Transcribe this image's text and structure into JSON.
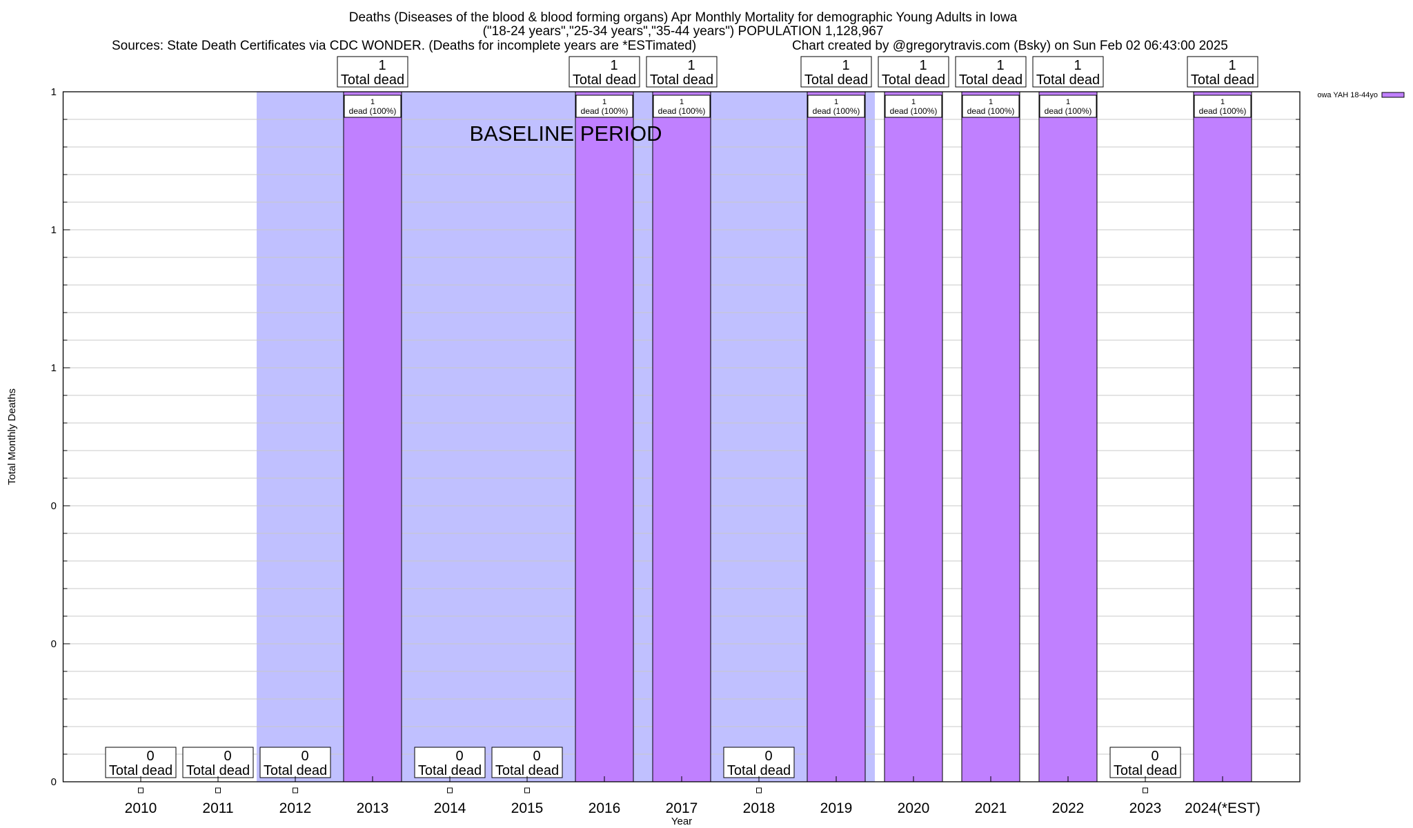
{
  "chart_data": {
    "type": "bar",
    "title_lines": [
      "Deaths (Diseases of the blood & blood forming organs) Apr Monthly Mortality for demographic Young Adults in Iowa",
      "(\"18-24 years\",\"25-34 years\",\"35-44 years\") POPULATION 1,128,967"
    ],
    "sources": "Sources: State Death Certificates via CDC WONDER. (Deaths for incomplete years are *ESTimated)",
    "credit": "Chart created by @gregorytravis.com (Bsky) on Sun Feb 02 06:43:00 2025",
    "xlabel": "Year",
    "ylabel": "Total Monthly Deaths",
    "categories": [
      "2010",
      "2011",
      "2012",
      "2013",
      "2014",
      "2015",
      "2016",
      "2017",
      "2018",
      "2019",
      "2020",
      "2021",
      "2022",
      "2023",
      "2024(*EST)"
    ],
    "series": [
      {
        "name": "owa YAH 18-44yo",
        "color": "#c080ff",
        "values": [
          0,
          0,
          0,
          1,
          0,
          0,
          1,
          1,
          0,
          1,
          1,
          1,
          1,
          0,
          1
        ]
      }
    ],
    "ylim": [
      0,
      1
    ],
    "yticks": [
      0,
      0.2,
      0.4,
      0.6,
      0.8,
      1.0
    ],
    "ytick_labels": [
      "0",
      "0",
      "0",
      "1",
      "1",
      "1"
    ],
    "grid": true,
    "legend_position": "top-right",
    "total_label_suffix": "Total dead",
    "inner_label_suffix": "dead (100%)",
    "baseline": {
      "label": "BASELINE PERIOD",
      "from": "2012",
      "to": "2019",
      "color": "#c0c0ff"
    }
  }
}
